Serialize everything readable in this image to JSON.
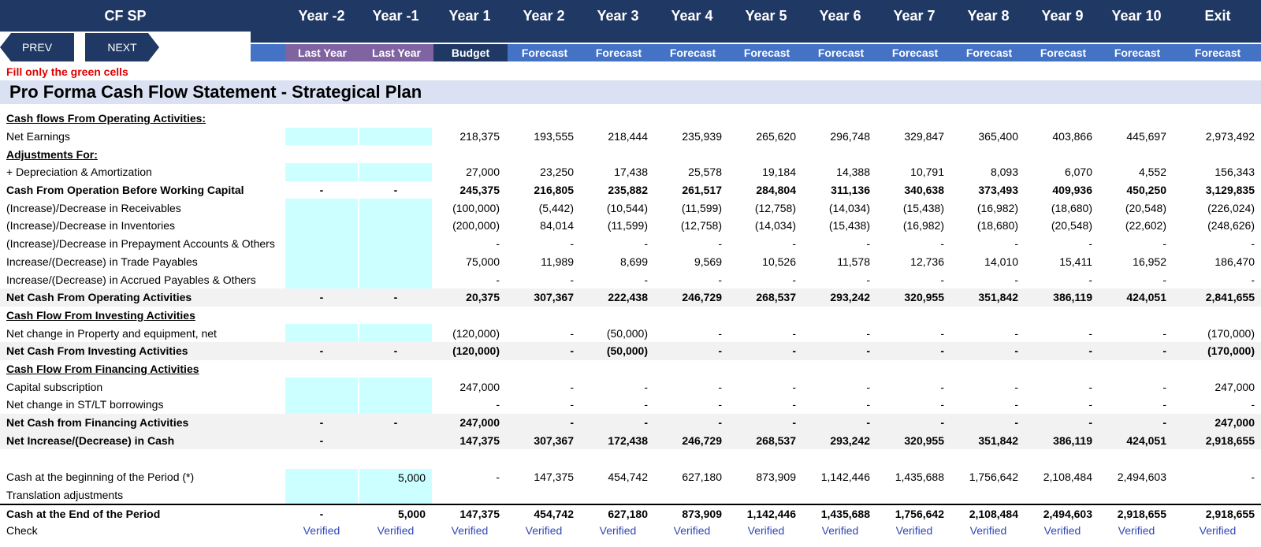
{
  "header": {
    "sheet_title": "CF SP",
    "prev_label": "PREV",
    "next_label": "NEXT",
    "years": [
      "Year -2",
      "Year -1",
      "Year 1",
      "Year 2",
      "Year 3",
      "Year 4",
      "Year 5",
      "Year 6",
      "Year 7",
      "Year 8",
      "Year 9",
      "Year 10",
      "Exit"
    ],
    "types": [
      "Last Year",
      "Last Year",
      "Budget",
      "Forecast",
      "Forecast",
      "Forecast",
      "Forecast",
      "Forecast",
      "Forecast",
      "Forecast",
      "Forecast",
      "Forecast",
      "Forecast"
    ]
  },
  "note": "Fill only the green cells",
  "title": "Pro Forma Cash Flow Statement - Strategical Plan",
  "colors": {
    "navy": "#1f3864",
    "purple": "#8064a2",
    "blue": "#4472c4",
    "input_cyan": "#ccffff",
    "note_red": "#e00000",
    "verified_blue": "#2f47b7",
    "title_band": "#d9e1f2"
  },
  "rows": [
    {
      "label": "Cash flows From Operating Activities:",
      "style": "section",
      "values": null
    },
    {
      "label": "Net Earnings",
      "style": "normal",
      "input": [
        true,
        true
      ],
      "values": [
        "",
        "",
        "218,375",
        "193,555",
        "218,444",
        "235,939",
        "265,620",
        "296,748",
        "329,847",
        "365,400",
        "403,866",
        "445,697",
        "2,973,492"
      ]
    },
    {
      "label": "Adjustments For:",
      "style": "section",
      "values": null
    },
    {
      "label": " + Depreciation & Amortization",
      "style": "normal",
      "input": [
        true,
        true
      ],
      "values": [
        "",
        "",
        "27,000",
        "23,250",
        "17,438",
        "25,578",
        "19,184",
        "14,388",
        "10,791",
        "8,093",
        "6,070",
        "4,552",
        "156,343"
      ]
    },
    {
      "label": "Cash From Operation Before Working Capital",
      "style": "bold",
      "values": [
        "-",
        "-",
        "245,375",
        "216,805",
        "235,882",
        "261,517",
        "284,804",
        "311,136",
        "340,638",
        "373,493",
        "409,936",
        "450,250",
        "3,129,835"
      ]
    },
    {
      "label": "(Increase)/Decrease in Receivables",
      "style": "normal",
      "input": [
        true,
        true
      ],
      "values": [
        "",
        "",
        "(100,000)",
        "(5,442)",
        "(10,544)",
        "(11,599)",
        "(12,758)",
        "(14,034)",
        "(15,438)",
        "(16,982)",
        "(18,680)",
        "(20,548)",
        "(226,024)"
      ]
    },
    {
      "label": "(Increase)/Decrease in Inventories",
      "style": "normal",
      "input": [
        true,
        true
      ],
      "values": [
        "",
        "",
        "(200,000)",
        "84,014",
        "(11,599)",
        "(12,758)",
        "(14,034)",
        "(15,438)",
        "(16,982)",
        "(18,680)",
        "(20,548)",
        "(22,602)",
        "(248,626)"
      ]
    },
    {
      "label": "(Increase)/Decrease in Prepayment Accounts & Others",
      "style": "normal",
      "input": [
        true,
        true
      ],
      "values": [
        "",
        "",
        "-",
        "-",
        "-",
        "-",
        "-",
        "-",
        "-",
        "-",
        "-",
        "-",
        "-"
      ]
    },
    {
      "label": "Increase/(Decrease) in Trade Payables",
      "style": "normal",
      "input": [
        true,
        true
      ],
      "values": [
        "",
        "",
        "75,000",
        "11,989",
        "8,699",
        "9,569",
        "10,526",
        "11,578",
        "12,736",
        "14,010",
        "15,411",
        "16,952",
        "186,470"
      ]
    },
    {
      "label": "Increase/(Decrease) in Accrued Payables & Others",
      "style": "normal",
      "input": [
        true,
        true
      ],
      "values": [
        "",
        "",
        "-",
        "-",
        "-",
        "-",
        "-",
        "-",
        "-",
        "-",
        "-",
        "-",
        "-"
      ]
    },
    {
      "label": "Net Cash From Operating Activities",
      "style": "bold gray",
      "values": [
        "-",
        "-",
        "20,375",
        "307,367",
        "222,438",
        "246,729",
        "268,537",
        "293,242",
        "320,955",
        "351,842",
        "386,119",
        "424,051",
        "2,841,655"
      ]
    },
    {
      "label": "Cash Flow From Investing Activities",
      "style": "section",
      "values": null
    },
    {
      "label": "Net change in Property and equipment, net",
      "style": "normal",
      "input": [
        true,
        true
      ],
      "values": [
        "",
        "",
        "(120,000)",
        "-",
        "(50,000)",
        "-",
        "-",
        "-",
        "-",
        "-",
        "-",
        "-",
        "(170,000)"
      ]
    },
    {
      "label": "Net Cash From Investing Activities",
      "style": "bold gray",
      "values": [
        "-",
        "-",
        "(120,000)",
        "-",
        "(50,000)",
        "-",
        "-",
        "-",
        "-",
        "-",
        "-",
        "-",
        "(170,000)"
      ]
    },
    {
      "label": "Cash Flow From Financing Activities",
      "style": "section",
      "values": null
    },
    {
      "label": "Capital subscription",
      "style": "normal",
      "input": [
        true,
        true
      ],
      "values": [
        "",
        "",
        "247,000",
        "-",
        "-",
        "-",
        "-",
        "-",
        "-",
        "-",
        "-",
        "-",
        "247,000"
      ]
    },
    {
      "label": "Net change in ST/LT borrowings",
      "style": "normal",
      "input": [
        true,
        true
      ],
      "values": [
        "",
        "",
        "-",
        "-",
        "-",
        "-",
        "-",
        "-",
        "-",
        "-",
        "-",
        "-",
        "-"
      ]
    },
    {
      "label": "Net Cash from Financing Activities",
      "style": "bold gray",
      "values": [
        "-",
        "-",
        "247,000",
        "-",
        "-",
        "-",
        "-",
        "-",
        "-",
        "-",
        "-",
        "-",
        "247,000"
      ]
    },
    {
      "label": "Net Increase/(Decrease) in Cash",
      "style": "bold gray",
      "values": [
        "-",
        "",
        "147,375",
        "307,367",
        "172,438",
        "246,729",
        "268,537",
        "293,242",
        "320,955",
        "351,842",
        "386,119",
        "424,051",
        "2,918,655"
      ]
    },
    {
      "label": "",
      "style": "spacer",
      "values": null
    },
    {
      "label": "Cash at the beginning of the Period (*)",
      "style": "normal",
      "input": [
        true,
        true
      ],
      "values": [
        "",
        "5,000",
        "-",
        "147,375",
        "454,742",
        "627,180",
        "873,909",
        "1,142,446",
        "1,435,688",
        "1,756,642",
        "2,108,484",
        "2,494,603",
        "-"
      ]
    },
    {
      "label": "Translation adjustments",
      "style": "normal",
      "input": [
        true,
        true
      ],
      "values": [
        "",
        "",
        "",
        "",
        "",
        "",
        "",
        "",
        "",
        "",
        "",
        "",
        ""
      ]
    },
    {
      "label": "Cash at the End of the Period",
      "style": "endrow",
      "values": [
        "-",
        "5,000",
        "147,375",
        "454,742",
        "627,180",
        "873,909",
        "1,142,446",
        "1,435,688",
        "1,756,642",
        "2,108,484",
        "2,494,603",
        "2,918,655",
        "2,918,655"
      ]
    },
    {
      "label": "Check",
      "style": "check",
      "values": [
        "Verified",
        "Verified",
        "Verified",
        "Verified",
        "Verified",
        "Verified",
        "Verified",
        "Verified",
        "Verified",
        "Verified",
        "Verified",
        "Verified",
        "Verified"
      ]
    }
  ]
}
